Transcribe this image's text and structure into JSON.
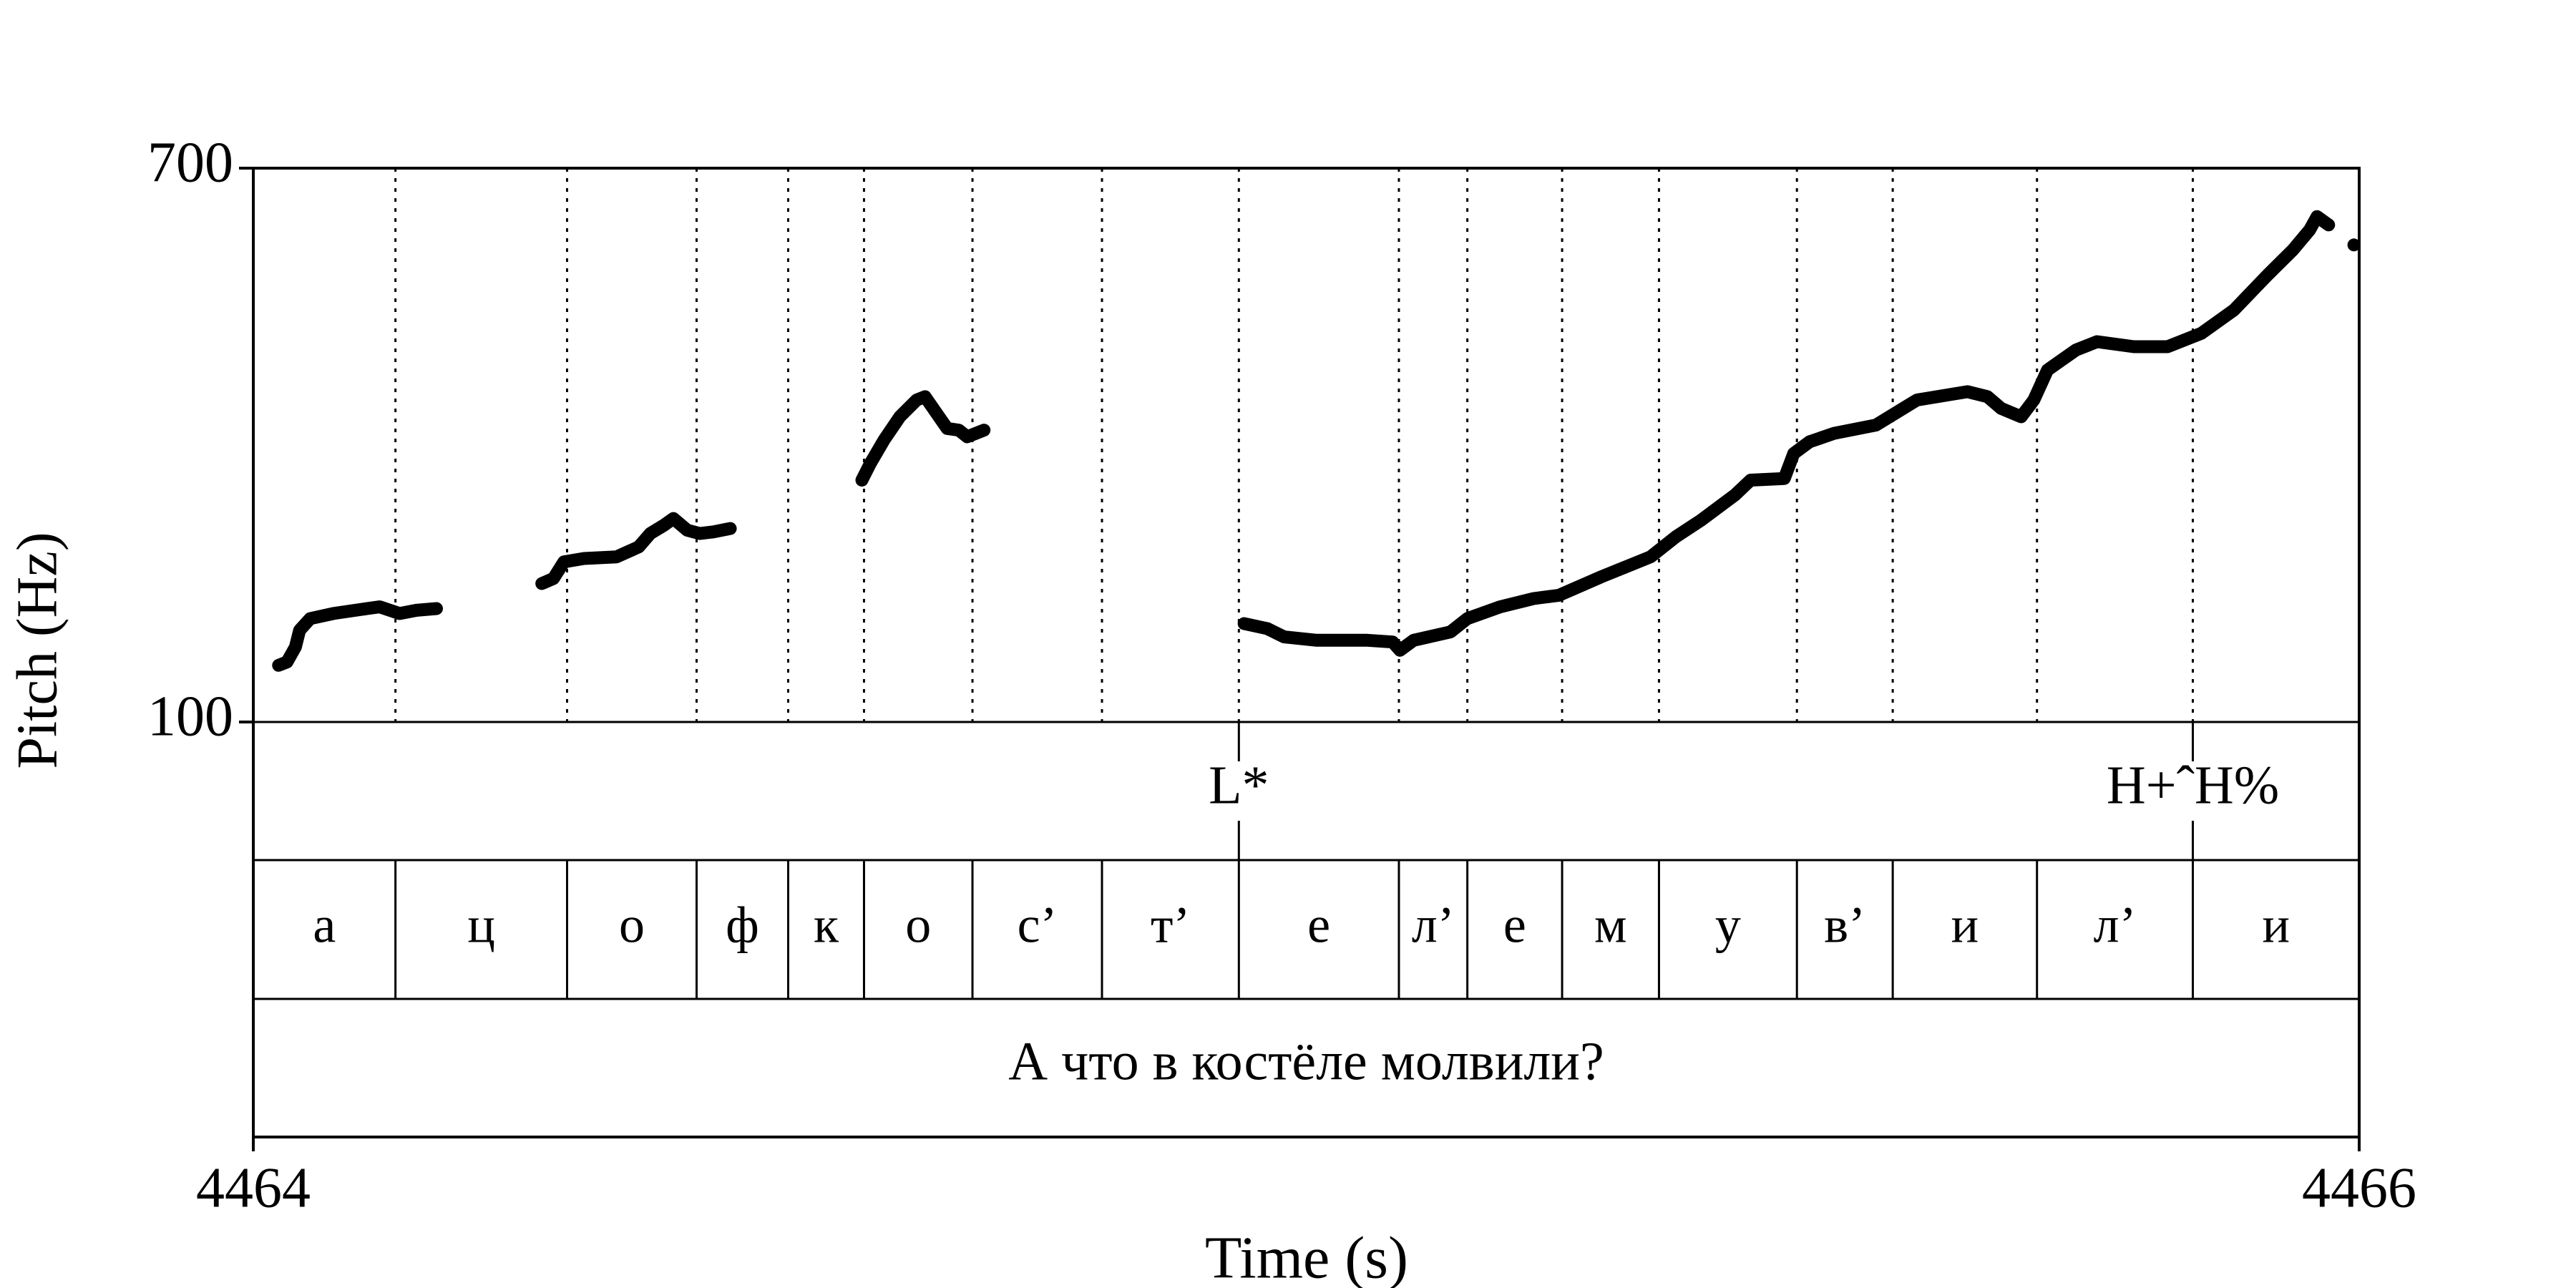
{
  "chart_data": {
    "type": "line",
    "xlabel": "Time (s)",
    "ylabel": "Pitch (Hz)",
    "xlim": [
      4464,
      4466
    ],
    "ylim": [
      100,
      700
    ],
    "xticks": [
      4464,
      4466
    ],
    "yticks": [
      100,
      700
    ],
    "color": "#000000",
    "x": [
      4464.024,
      4464.032,
      4464.04,
      4464.044,
      4464.054,
      4464.076,
      4464.108,
      4464.12,
      4464.139,
      4464.155,
      4464.174,
      null,
      4464.274,
      4464.285,
      4464.295,
      4464.314,
      4464.345,
      4464.366,
      4464.377,
      4464.39,
      4464.399,
      4464.412,
      4464.424,
      4464.437,
      4464.453,
      null,
      4464.578,
      4464.586,
      4464.599,
      4464.614,
      4464.63,
      4464.638,
      4464.649,
      4464.659,
      4464.67,
      4464.678,
      4464.694,
      null,
      4464.941,
      4464.963,
      4464.979,
      4465.01,
      4465.058,
      4465.082,
      4465.089,
      4465.102,
      4465.137,
      4465.153,
      4465.184,
      4465.216,
      4465.24,
      4465.28,
      4465.327,
      4465.351,
      4465.375,
      4465.407,
      4465.422,
      4465.454,
      4465.463,
      4465.478,
      4465.501,
      4465.541,
      4465.58,
      4465.628,
      4465.647,
      4465.66,
      4465.679,
      4465.691,
      4465.704,
      4465.731,
      4465.751,
      4465.786,
      4465.818,
      4465.85,
      4465.881,
      4465.913,
      4465.937,
      4465.953,
      4465.96,
      4465.971,
      null,
      4465.995
    ],
    "values": [
      161.4,
      165,
      181.3,
      199.4,
      212,
      217.5,
      222.9,
      224.7,
      217.5,
      221,
      222.9,
      null,
      250,
      255.4,
      273.5,
      277.1,
      278.9,
      289.7,
      304.2,
      313.2,
      320.5,
      307.8,
      304.2,
      306,
      309.6,
      null,
      362,
      380.1,
      405.4,
      430.7,
      448.8,
      452.4,
      434.3,
      418,
      416.2,
      409,
      416.2,
      null,
      206.6,
      201.2,
      192.2,
      188.5,
      188.5,
      186.7,
      177.7,
      188.5,
      197.6,
      212,
      224.7,
      233.7,
      237.3,
      257.2,
      278.9,
      300.6,
      318.6,
      345.8,
      362,
      363.8,
      390.9,
      403.6,
      412.6,
      421.6,
      448.8,
      457.8,
      452.4,
      439.7,
      430.7,
      448.8,
      481.3,
      503,
      512,
      506.6,
      506.6,
      521,
      546.3,
      584.3,
      611.4,
      633.1,
      647.5,
      638.5,
      null,
      616.8
    ],
    "tone_tier": {
      "times": [
        4464.936,
        4465.842
      ],
      "labels": [
        "L*",
        "H+ˆH%"
      ]
    },
    "segment_tier": {
      "boundaries": [
        4464.135,
        4464.298,
        4464.421,
        4464.508,
        4464.58,
        4464.683,
        4464.806,
        4464.936,
        4465.088,
        4465.153,
        4465.243,
        4465.335,
        4465.466,
        4465.557,
        4465.694,
        4465.842
      ],
      "labels": [
        "а",
        "ц",
        "о",
        "ф",
        "к",
        "о",
        "с’",
        "т’",
        "е",
        "л’",
        "е",
        "м",
        "у",
        "в’",
        "и",
        "л’",
        "и"
      ]
    },
    "sentence_tier": {
      "text": "А что в костёле молвили?"
    }
  }
}
